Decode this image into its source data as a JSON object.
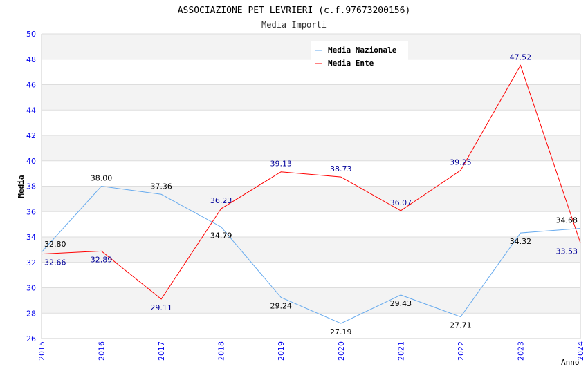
{
  "chart_data": {
    "type": "line",
    "title": "ASSOCIAZIONE PET LEVRIERI (c.f.97673200156)",
    "subtitle": "Media Importi",
    "xlabel": "Anno",
    "ylabel": "Media",
    "ylim": [
      26,
      50
    ],
    "yticks": [
      "26",
      "28",
      "30",
      "32",
      "34",
      "36",
      "38",
      "40",
      "42",
      "44",
      "46",
      "48",
      "50"
    ],
    "categories": [
      "2015",
      "2016",
      "2017",
      "2018",
      "2019",
      "2020",
      "2021",
      "2022",
      "2023",
      "2024"
    ],
    "legend_position": "top-right",
    "series": [
      {
        "name": "Media Nazionale",
        "color": "#66aaee",
        "label_color": "#000000",
        "values": [
          32.8,
          38.0,
          37.36,
          34.79,
          29.24,
          27.19,
          29.43,
          27.71,
          34.32,
          34.68
        ],
        "labels": [
          "32.80",
          "38.00",
          "37.36",
          "34.79",
          "29.24",
          "27.19",
          "29.43",
          "27.71",
          "34.32",
          "34.68"
        ]
      },
      {
        "name": "Media Ente",
        "color": "#ff0000",
        "label_color": "#000099",
        "values": [
          32.66,
          32.89,
          29.11,
          36.23,
          39.13,
          38.73,
          36.07,
          39.25,
          47.52,
          33.53
        ],
        "labels": [
          "32.66",
          "32.89",
          "29.11",
          "36.23",
          "39.13",
          "38.73",
          "36.07",
          "39.25",
          "47.52",
          "33.53"
        ]
      }
    ]
  }
}
